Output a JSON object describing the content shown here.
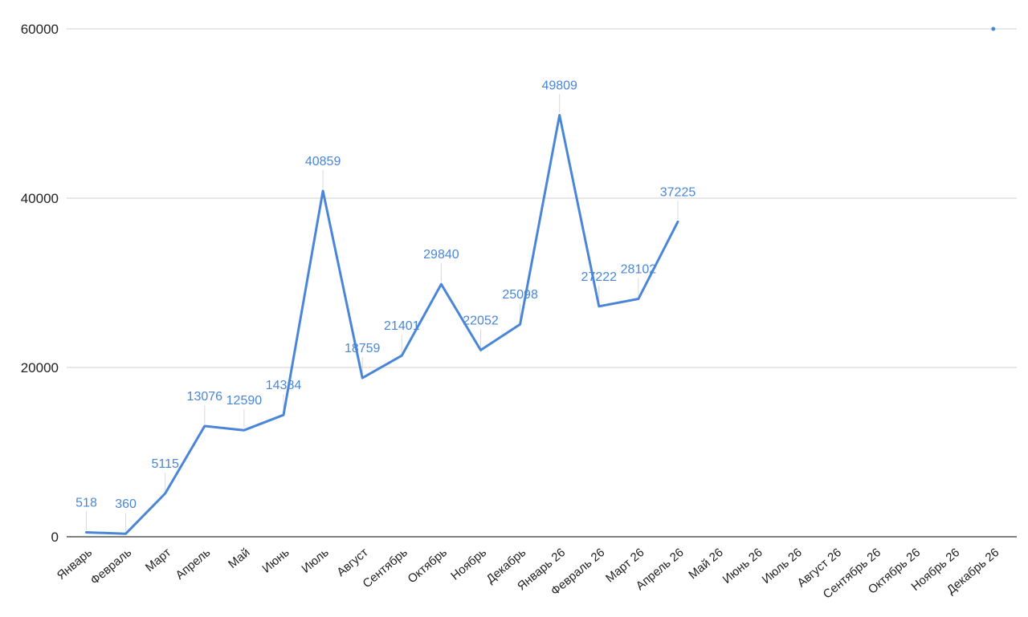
{
  "chart_data": {
    "type": "line",
    "title": "",
    "xlabel": "",
    "ylabel": "",
    "ylim": [
      0,
      60000
    ],
    "yticks": [
      0,
      20000,
      40000,
      60000
    ],
    "ytick_labels": [
      "0",
      "20000",
      "40000",
      "60000"
    ],
    "grid": true,
    "legend": "none",
    "color": "#4a86d8",
    "categories": [
      "Январь",
      "Февраль",
      "Март",
      "Апрель",
      "Май",
      "Июнь",
      "Июль",
      "Август",
      "Сентябрь",
      "Октябрь",
      "Ноябрь",
      "Декабрь",
      "Январь 26",
      "Февраль 26",
      "Март 26",
      "Апрель 26",
      "Май 26",
      "Июнь 26",
      "Июль 26",
      "Август 26",
      "Сентябрь 26",
      "Октябрь 26",
      "Ноябрь 26",
      "Декабрь 26"
    ],
    "series": [
      {
        "values": [
          518,
          360,
          5115,
          13076,
          12590,
          14384,
          40859,
          18759,
          21401,
          29840,
          22052,
          25098,
          49809,
          27222,
          28102,
          37225,
          null,
          null,
          null,
          null,
          null,
          null,
          null,
          60000
        ],
        "data_labels": [
          "518",
          "360",
          "5115",
          "13076",
          "12590",
          "14384",
          "40859",
          "18759",
          "21401",
          "29840",
          "22052",
          "25098",
          "49809",
          "27222",
          "28102",
          "37225",
          "",
          "",
          "",
          "",
          "",
          "",
          "",
          ""
        ]
      }
    ]
  }
}
